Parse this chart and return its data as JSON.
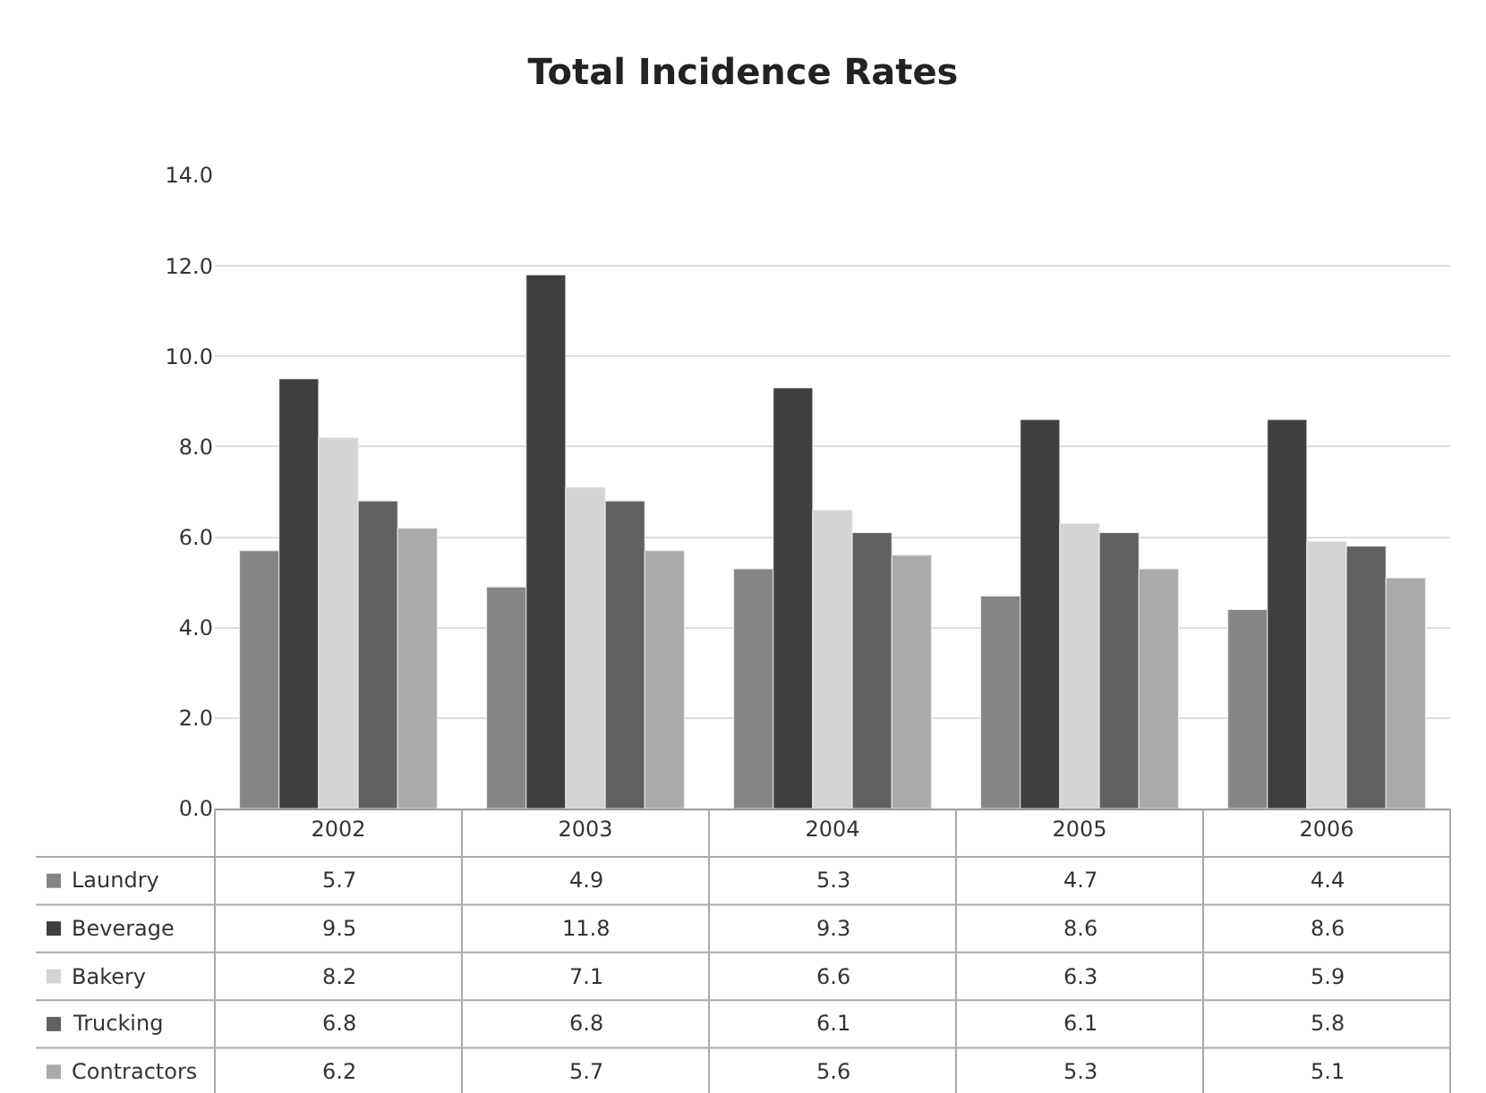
{
  "chart_data": {
    "type": "bar",
    "title": "Total Incidence Rates",
    "categories": [
      "2002",
      "2003",
      "2004",
      "2005",
      "2006"
    ],
    "series": [
      {
        "name": "Laundry",
        "color": "#858585",
        "values": [
          5.7,
          4.9,
          5.3,
          4.7,
          4.4
        ]
      },
      {
        "name": "Beverage",
        "color": "#3f3f3f",
        "values": [
          9.5,
          11.8,
          9.3,
          8.6,
          8.6
        ]
      },
      {
        "name": "Bakery",
        "color": "#d4d4d4",
        "values": [
          8.2,
          7.1,
          6.6,
          6.3,
          5.9
        ]
      },
      {
        "name": "Trucking",
        "color": "#606060",
        "values": [
          6.8,
          6.8,
          6.1,
          6.1,
          5.8
        ]
      },
      {
        "name": "Contractors",
        "color": "#aaaaaa",
        "values": [
          6.2,
          5.7,
          5.6,
          5.3,
          5.1
        ]
      }
    ],
    "ylim": [
      0,
      14
    ],
    "yticks": [
      {
        "value": 0,
        "label": "0.0"
      },
      {
        "value": 2,
        "label": "2.0"
      },
      {
        "value": 4,
        "label": "4.0"
      },
      {
        "value": 6,
        "label": "6.0"
      },
      {
        "value": 8,
        "label": "8.0"
      },
      {
        "value": 10,
        "label": "10.0"
      },
      {
        "value": 12,
        "label": "12.0"
      },
      {
        "value": 14,
        "label": "14.0"
      }
    ],
    "grid": "y",
    "legend": "bottom left",
    "data_labels": true
  }
}
